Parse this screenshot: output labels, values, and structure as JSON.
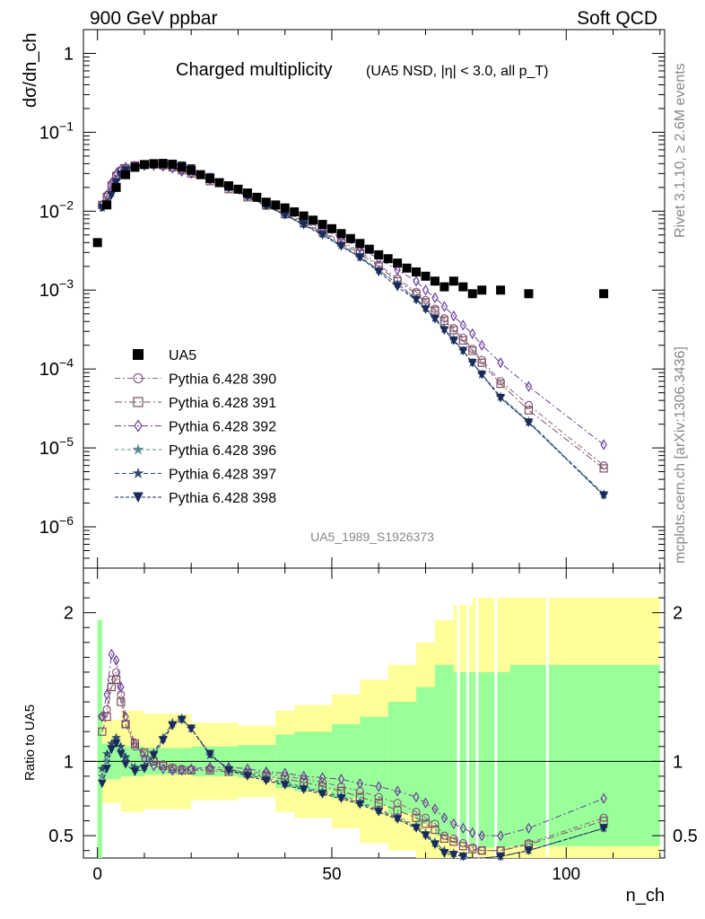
{
  "header": {
    "left_title": "900 GeV ppbar",
    "right_title": "Soft QCD",
    "side_rivet": "Rivet 3.1.10, ≥ 2.6M events",
    "side_mcplots": "mcplots.cern.ch [arXiv:1306.3436]"
  },
  "chart_data": {
    "type": "scatter",
    "title": "Charged multiplicity",
    "subtitle": "(UA5 NSD, |η| < 3.0, all p_T)",
    "analysis_id": "UA5_1989_S1926373",
    "xlabel": "n_ch",
    "ylabel_main": "dσ/dn_ch",
    "ylabel_ratio": "Ratio to UA5",
    "xlim": [
      -3,
      121
    ],
    "ylim_main_log": [
      3e-07,
      2.0
    ],
    "ylim_ratio": [
      0.35,
      2.3
    ],
    "x_ticks": [
      0,
      50,
      100
    ],
    "y_ticks_main": [
      "1",
      "10^-1",
      "10^-2",
      "10^-3",
      "10^-4",
      "10^-5",
      "10^-6"
    ],
    "y_ticks_ratio": [
      "0.5",
      "1",
      "2"
    ],
    "colors": {
      "band_inner": "#99ff99",
      "band_outer": "#ffff99",
      "data": "#000000",
      "s390": "#8b5e83",
      "s391": "#7a4f5e",
      "s392": "#6a3d9a",
      "s396": "#5a8a94",
      "s397": "#2f4a6e",
      "s398": "#1a2a5a"
    },
    "legend": [
      "UA5",
      "Pythia 6.428 390",
      "Pythia 6.428 391",
      "Pythia 6.428 392",
      "Pythia 6.428 396",
      "Pythia 6.428 397",
      "Pythia 6.428 398"
    ],
    "data_points": {
      "x": [
        0,
        2,
        4,
        6,
        8,
        10,
        12,
        14,
        16,
        18,
        20,
        22,
        24,
        26,
        28,
        30,
        32,
        34,
        36,
        38,
        40,
        42,
        44,
        46,
        48,
        50,
        52,
        54,
        56,
        58,
        60,
        62,
        64,
        66,
        68,
        70,
        72,
        74,
        76,
        78,
        80,
        82,
        86,
        92,
        108
      ],
      "y": [
        0.004,
        0.012,
        0.02,
        0.029,
        0.036,
        0.039,
        0.04,
        0.04,
        0.039,
        0.036,
        0.033,
        0.029,
        0.026,
        0.023,
        0.021,
        0.019,
        0.017,
        0.015,
        0.013,
        0.012,
        0.011,
        0.0098,
        0.0087,
        0.0077,
        0.0068,
        0.006,
        0.0052,
        0.0045,
        0.0039,
        0.0033,
        0.0028,
        0.0025,
        0.0022,
        0.0019,
        0.0017,
        0.0015,
        0.0013,
        0.0011,
        0.0013,
        0.0011,
        0.0009,
        0.001,
        0.001,
        0.0009,
        0.0009
      ]
    },
    "band": [
      {
        "x": [
          0,
          1
        ],
        "in": [
          0.05,
          1.95
        ],
        "out": [
          0.05,
          1.95
        ]
      },
      {
        "x": [
          1,
          5
        ],
        "in": [
          0.88,
          1.12
        ],
        "out": [
          0.72,
          1.28
        ]
      },
      {
        "x": [
          5,
          10
        ],
        "in": [
          0.9,
          1.1
        ],
        "out": [
          0.66,
          1.34
        ]
      },
      {
        "x": [
          10,
          20
        ],
        "in": [
          0.91,
          1.09
        ],
        "out": [
          0.68,
          1.32
        ]
      },
      {
        "x": [
          20,
          30
        ],
        "in": [
          0.9,
          1.1
        ],
        "out": [
          0.74,
          1.26
        ]
      },
      {
        "x": [
          30,
          38
        ],
        "in": [
          0.89,
          1.11
        ],
        "out": [
          0.76,
          1.24
        ]
      },
      {
        "x": [
          38,
          42
        ],
        "in": [
          0.82,
          1.18
        ],
        "out": [
          0.66,
          1.34
        ]
      },
      {
        "x": [
          42,
          50
        ],
        "in": [
          0.8,
          1.2
        ],
        "out": [
          0.62,
          1.38
        ]
      },
      {
        "x": [
          50,
          56
        ],
        "in": [
          0.75,
          1.25
        ],
        "out": [
          0.55,
          1.45
        ]
      },
      {
        "x": [
          56,
          62
        ],
        "in": [
          0.7,
          1.3
        ],
        "out": [
          0.45,
          1.55
        ]
      },
      {
        "x": [
          62,
          68
        ],
        "in": [
          0.65,
          1.4
        ],
        "out": [
          0.4,
          1.65
        ]
      },
      {
        "x": [
          68,
          72
        ],
        "in": [
          0.58,
          1.5
        ],
        "out": [
          0.35,
          1.8
        ]
      },
      {
        "x": [
          72,
          76
        ],
        "in": [
          0.5,
          1.65
        ],
        "out": [
          0.35,
          1.95
        ]
      },
      {
        "x": [
          76,
          80
        ],
        "in": [
          0.45,
          1.6
        ],
        "out": [
          0.35,
          2.05
        ]
      },
      {
        "x": [
          80,
          88
        ],
        "in": [
          0.42,
          1.6
        ],
        "out": [
          0.35,
          2.1
        ]
      },
      {
        "x": [
          88,
          120
        ],
        "in": [
          0.43,
          1.65
        ],
        "out": [
          0.35,
          2.1
        ]
      }
    ],
    "series": [
      {
        "name": "Pythia 6.428 390",
        "marker": "circle",
        "dash": "6,3,2,3",
        "x": [
          1,
          2,
          3,
          4,
          5,
          6,
          8,
          10,
          12,
          14,
          16,
          18,
          20,
          24,
          28,
          32,
          36,
          40,
          44,
          48,
          52,
          56,
          60,
          64,
          68,
          70,
          72,
          74,
          76,
          78,
          80,
          82,
          86,
          92,
          108
        ],
        "ratio": [
          1.3,
          1.35,
          1.55,
          1.6,
          1.45,
          1.25,
          1.1,
          1.05,
          1.0,
          0.98,
          0.96,
          0.95,
          0.94,
          0.95,
          0.94,
          0.93,
          0.92,
          0.9,
          0.88,
          0.86,
          0.83,
          0.8,
          0.76,
          0.72,
          0.66,
          0.62,
          0.58,
          0.5,
          0.48,
          0.45,
          0.42,
          0.4,
          0.4,
          0.45,
          0.62
        ],
        "y": [
          0.012,
          0.016,
          0.022,
          0.028,
          0.032,
          0.035,
          0.038,
          0.039,
          0.039,
          0.038,
          0.036,
          0.034,
          0.031,
          0.025,
          0.02,
          0.016,
          0.012,
          0.0095,
          0.0074,
          0.0056,
          0.0042,
          0.0031,
          0.0021,
          0.0014,
          0.00095,
          0.00075,
          0.00058,
          0.00044,
          0.00033,
          0.00025,
          0.00018,
          0.00013,
          7e-05,
          3.5e-05,
          6e-06
        ]
      },
      {
        "name": "Pythia 6.428 391",
        "marker": "square",
        "dash": "8,3,2,3",
        "x": [
          1,
          2,
          3,
          4,
          5,
          6,
          8,
          10,
          12,
          14,
          16,
          18,
          20,
          24,
          28,
          32,
          36,
          40,
          44,
          48,
          52,
          56,
          60,
          64,
          68,
          70,
          72,
          74,
          76,
          78,
          80,
          82,
          86,
          92,
          108
        ],
        "ratio": [
          1.2,
          1.3,
          1.5,
          1.55,
          1.4,
          1.25,
          1.12,
          1.06,
          1.0,
          0.97,
          0.95,
          0.94,
          0.94,
          0.94,
          0.93,
          0.92,
          0.9,
          0.88,
          0.86,
          0.83,
          0.8,
          0.76,
          0.72,
          0.67,
          0.62,
          0.58,
          0.54,
          0.48,
          0.46,
          0.43,
          0.41,
          0.4,
          0.4,
          0.44,
          0.6
        ],
        "y": [
          0.012,
          0.015,
          0.021,
          0.028,
          0.032,
          0.035,
          0.038,
          0.039,
          0.039,
          0.038,
          0.036,
          0.033,
          0.03,
          0.024,
          0.019,
          0.015,
          0.0118,
          0.0092,
          0.0071,
          0.0054,
          0.004,
          0.0029,
          0.002,
          0.0013,
          0.0009,
          0.0007,
          0.00055,
          0.00041,
          0.00031,
          0.00023,
          0.00017,
          0.00012,
          6.5e-05,
          3e-05,
          5.5e-06
        ]
      },
      {
        "name": "Pythia 6.428 392",
        "marker": "diamond",
        "dash": "7,3,2,3",
        "x": [
          1,
          2,
          3,
          4,
          5,
          6,
          8,
          10,
          12,
          14,
          16,
          18,
          20,
          24,
          28,
          32,
          36,
          40,
          44,
          48,
          52,
          56,
          60,
          64,
          68,
          70,
          72,
          74,
          76,
          78,
          80,
          82,
          86,
          92,
          108
        ],
        "ratio": [
          1.3,
          1.45,
          1.72,
          1.68,
          1.5,
          1.3,
          1.12,
          1.02,
          0.97,
          0.95,
          0.94,
          0.94,
          0.95,
          0.96,
          0.96,
          0.95,
          0.93,
          0.92,
          0.9,
          0.89,
          0.88,
          0.85,
          0.83,
          0.8,
          0.76,
          0.72,
          0.68,
          0.62,
          0.58,
          0.55,
          0.52,
          0.5,
          0.5,
          0.55,
          0.75
        ],
        "y": [
          0.012,
          0.016,
          0.023,
          0.03,
          0.034,
          0.036,
          0.037,
          0.038,
          0.038,
          0.037,
          0.035,
          0.032,
          0.03,
          0.025,
          0.02,
          0.016,
          0.0125,
          0.0098,
          0.0077,
          0.006,
          0.0046,
          0.0034,
          0.0025,
          0.0018,
          0.0013,
          0.001,
          0.0008,
          0.00062,
          0.00047,
          0.00036,
          0.00028,
          0.0002,
          0.00012,
          6e-05,
          1.1e-05
        ]
      },
      {
        "name": "Pythia 6.428 396",
        "marker": "star",
        "dash": "4,3",
        "x": [
          1,
          2,
          3,
          4,
          5,
          6,
          8,
          10,
          12,
          14,
          16,
          18,
          20,
          24,
          28,
          32,
          36,
          40,
          44,
          48,
          52,
          56,
          60,
          64,
          68,
          70,
          72,
          74,
          76,
          78,
          80,
          82,
          86,
          92,
          108
        ],
        "ratio": [
          0.9,
          1.0,
          1.1,
          1.15,
          1.1,
          1.02,
          0.95,
          0.96,
          1.05,
          1.15,
          1.25,
          1.28,
          1.22,
          1.05,
          0.95,
          0.92,
          0.89,
          0.86,
          0.83,
          0.8,
          0.77,
          0.73,
          0.68,
          0.63,
          0.57,
          0.52,
          0.46,
          0.4,
          0.38,
          0.36,
          0.35,
          0.35,
          0.36,
          0.4,
          0.55
        ],
        "y": [
          0.011,
          0.013,
          0.017,
          0.024,
          0.03,
          0.034,
          0.037,
          0.039,
          0.04,
          0.04,
          0.039,
          0.037,
          0.034,
          0.027,
          0.02,
          0.0155,
          0.0119,
          0.0091,
          0.0069,
          0.0052,
          0.0038,
          0.0027,
          0.0018,
          0.0012,
          0.00078,
          0.0006,
          0.00045,
          0.00033,
          0.00024,
          0.00017,
          0.00012,
          8.7e-05,
          4.5e-05,
          2.2e-05,
          2.5e-06
        ]
      },
      {
        "name": "Pythia 6.428 397",
        "marker": "star",
        "dash": "5,3",
        "x": [
          1,
          2,
          3,
          4,
          5,
          6,
          8,
          10,
          12,
          14,
          16,
          18,
          20,
          24,
          28,
          32,
          36,
          40,
          44,
          48,
          52,
          56,
          60,
          64,
          68,
          70,
          72,
          74,
          76,
          78,
          80,
          82,
          86,
          92,
          108
        ],
        "ratio": [
          0.95,
          1.05,
          1.12,
          1.16,
          1.1,
          1.03,
          0.96,
          0.97,
          1.06,
          1.16,
          1.26,
          1.29,
          1.22,
          1.04,
          0.95,
          0.91,
          0.88,
          0.85,
          0.82,
          0.79,
          0.76,
          0.72,
          0.67,
          0.62,
          0.56,
          0.51,
          0.45,
          0.4,
          0.38,
          0.36,
          0.35,
          0.35,
          0.36,
          0.4,
          0.55
        ],
        "y": [
          0.011,
          0.013,
          0.017,
          0.024,
          0.03,
          0.034,
          0.037,
          0.039,
          0.04,
          0.04,
          0.039,
          0.037,
          0.034,
          0.027,
          0.02,
          0.0154,
          0.0118,
          0.009,
          0.0068,
          0.0051,
          0.0037,
          0.0026,
          0.0018,
          0.0012,
          0.00077,
          0.00059,
          0.00044,
          0.00032,
          0.00023,
          0.00017,
          0.00012,
          8.5e-05,
          4.4e-05,
          2.1e-05,
          2.6e-06
        ]
      },
      {
        "name": "Pythia 6.428 398",
        "marker": "triangle-down",
        "dash": "4,2",
        "x": [
          1,
          2,
          3,
          4,
          5,
          6,
          8,
          10,
          12,
          14,
          16,
          18,
          20,
          24,
          28,
          32,
          36,
          40,
          44,
          48,
          52,
          56,
          60,
          64,
          68,
          70,
          72,
          74,
          76,
          78,
          80,
          82,
          86,
          92,
          108
        ],
        "ratio": [
          0.85,
          0.95,
          1.08,
          1.12,
          1.05,
          0.98,
          0.93,
          0.95,
          1.04,
          1.14,
          1.24,
          1.28,
          1.22,
          1.05,
          0.94,
          0.9,
          0.87,
          0.84,
          0.81,
          0.78,
          0.75,
          0.71,
          0.66,
          0.61,
          0.55,
          0.5,
          0.44,
          0.38,
          0.37,
          0.36,
          0.35,
          0.35,
          0.36,
          0.4,
          0.55
        ],
        "y": [
          0.011,
          0.012,
          0.016,
          0.023,
          0.029,
          0.033,
          0.036,
          0.038,
          0.04,
          0.041,
          0.04,
          0.038,
          0.035,
          0.027,
          0.02,
          0.0153,
          0.0117,
          0.0089,
          0.0067,
          0.005,
          0.0036,
          0.0026,
          0.0017,
          0.0011,
          0.00075,
          0.00057,
          0.00043,
          0.00031,
          0.00023,
          0.00017,
          0.00012,
          8.5e-05,
          4.3e-05,
          2.1e-05,
          2.5e-06
        ]
      }
    ]
  }
}
